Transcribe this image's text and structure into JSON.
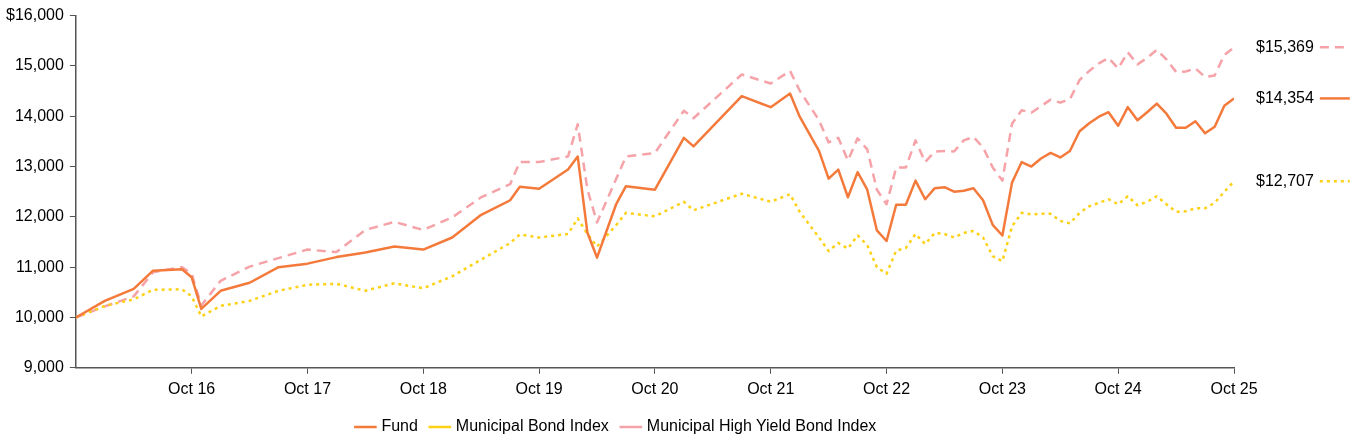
{
  "chart_data": {
    "type": "line",
    "x": [
      "2015-10",
      "2016-01",
      "2016-04",
      "2016-06",
      "2016-09",
      "2016-10",
      "2016-11",
      "2017-01",
      "2017-04",
      "2017-07",
      "2017-10",
      "2018-01",
      "2018-04",
      "2018-07",
      "2018-10",
      "2019-01",
      "2019-04",
      "2019-07",
      "2019-08",
      "2019-10",
      "2020-01",
      "2020-02",
      "2020-03",
      "2020-04",
      "2020-06",
      "2020-07",
      "2020-10",
      "2021-01",
      "2021-02",
      "2021-07",
      "2021-10",
      "2021-12",
      "2022-01",
      "2022-03",
      "2022-04",
      "2022-05",
      "2022-06",
      "2022-07",
      "2022-08",
      "2022-09",
      "2022-10",
      "2022-11",
      "2022-12",
      "2023-01",
      "2023-02",
      "2023-03",
      "2023-04",
      "2023-05",
      "2023-06",
      "2023-07",
      "2023-08",
      "2023-09",
      "2023-10",
      "2023-11",
      "2023-12",
      "2024-01",
      "2024-02",
      "2024-03",
      "2024-04",
      "2024-05",
      "2024-06",
      "2024-07",
      "2024-08",
      "2024-09",
      "2024-10",
      "2024-11",
      "2024-12",
      "2025-01",
      "2025-02",
      "2025-03",
      "2025-04",
      "2025-05",
      "2025-06",
      "2025-07",
      "2025-08",
      "2025-09",
      "2025-10"
    ],
    "series": [
      {
        "name": "Fund",
        "color": "#f47a3c",
        "line_style": "solid",
        "values": [
          10000,
          10330,
          10570,
          10930,
          10960,
          10800,
          10170,
          10530,
          10690,
          11000,
          11070,
          11200,
          11290,
          11410,
          11350,
          11590,
          12040,
          12330,
          12600,
          12560,
          12940,
          13200,
          11690,
          11190,
          12260,
          12610,
          12540,
          13570,
          13400,
          14400,
          14180,
          14450,
          13990,
          13310,
          12760,
          12940,
          12390,
          12890,
          12540,
          11730,
          11520,
          12240,
          12240,
          12720,
          12350,
          12570,
          12590,
          12500,
          12520,
          12570,
          12330,
          11840,
          11630,
          12680,
          13090,
          13000,
          13160,
          13270,
          13180,
          13310,
          13700,
          13860,
          13990,
          14080,
          13810,
          14180,
          13920,
          14080,
          14250,
          14050,
          13770,
          13770,
          13900,
          13660,
          13790,
          14210,
          14354
        ]
      },
      {
        "name": "Municipal Bond Index",
        "color": "#fcd116",
        "line_style": "dotted",
        "values": [
          10000,
          10230,
          10360,
          10550,
          10560,
          10420,
          10020,
          10230,
          10330,
          10530,
          10650,
          10670,
          10530,
          10680,
          10580,
          10820,
          11150,
          11480,
          11650,
          11590,
          11660,
          11970,
          11660,
          11410,
          11840,
          12080,
          12010,
          12300,
          12130,
          12460,
          12300,
          12450,
          12100,
          11590,
          11320,
          11480,
          11370,
          11630,
          11440,
          11000,
          10870,
          11330,
          11380,
          11660,
          11460,
          11680,
          11660,
          11590,
          11680,
          11720,
          11590,
          11220,
          11120,
          11810,
          12080,
          12050,
          12060,
          12060,
          11920,
          11870,
          12080,
          12210,
          12280,
          12350,
          12250,
          12410,
          12230,
          12300,
          12410,
          12250,
          12100,
          12110,
          12170,
          12170,
          12280,
          12500,
          12707
        ]
      },
      {
        "name": "Municipal High Yield Bond Index",
        "color": "#f5a3a8",
        "line_style": "dashed",
        "values": [
          10000,
          10220,
          10420,
          10900,
          11000,
          10870,
          10240,
          10730,
          11010,
          11180,
          11350,
          11300,
          11740,
          11900,
          11740,
          11990,
          12390,
          12650,
          13090,
          13090,
          13200,
          13840,
          12550,
          11890,
          12760,
          13200,
          13270,
          14110,
          13960,
          14830,
          14650,
          14900,
          14510,
          13920,
          13480,
          13570,
          13120,
          13560,
          13340,
          12540,
          12250,
          12980,
          12980,
          13520,
          13090,
          13300,
          13310,
          13300,
          13520,
          13590,
          13380,
          12980,
          12720,
          13850,
          14120,
          14070,
          14200,
          14330,
          14270,
          14340,
          14720,
          14900,
          15050,
          15160,
          14950,
          15270,
          15030,
          15160,
          15320,
          15130,
          14880,
          14890,
          14950,
          14780,
          14810,
          15220,
          15369
        ]
      }
    ],
    "xlim": [
      "2015-10",
      "2025-10"
    ],
    "xticks": [
      {
        "value": "2016-10",
        "label": "Oct 16"
      },
      {
        "value": "2017-10",
        "label": "Oct 17"
      },
      {
        "value": "2018-10",
        "label": "Oct 18"
      },
      {
        "value": "2019-10",
        "label": "Oct 19"
      },
      {
        "value": "2020-10",
        "label": "Oct 20"
      },
      {
        "value": "2021-10",
        "label": "Oct 21"
      },
      {
        "value": "2022-10",
        "label": "Oct 22"
      },
      {
        "value": "2023-10",
        "label": "Oct 23"
      },
      {
        "value": "2024-10",
        "label": "Oct 24"
      },
      {
        "value": "2025-10",
        "label": "Oct 25"
      }
    ],
    "ylim": [
      9000,
      16000
    ],
    "yticks": [
      {
        "value": 9000,
        "label": "9,000"
      },
      {
        "value": 10000,
        "label": "10,000"
      },
      {
        "value": 11000,
        "label": "11,000"
      },
      {
        "value": 12000,
        "label": "12,000"
      },
      {
        "value": 13000,
        "label": "13,000"
      },
      {
        "value": 14000,
        "label": "14,000"
      },
      {
        "value": 15000,
        "label": "15,000"
      },
      {
        "value": 16000,
        "label": "$16,000"
      }
    ],
    "annotations": [
      {
        "text": "$15,369",
        "x": "2025-10",
        "y": 15369
      },
      {
        "text": "$14,354",
        "x": "2025-10",
        "y": 14354
      },
      {
        "text": "$12,707",
        "x": "2025-10",
        "y": 12707
      }
    ],
    "grid": false,
    "legend": "bottom",
    "marker": "none"
  }
}
